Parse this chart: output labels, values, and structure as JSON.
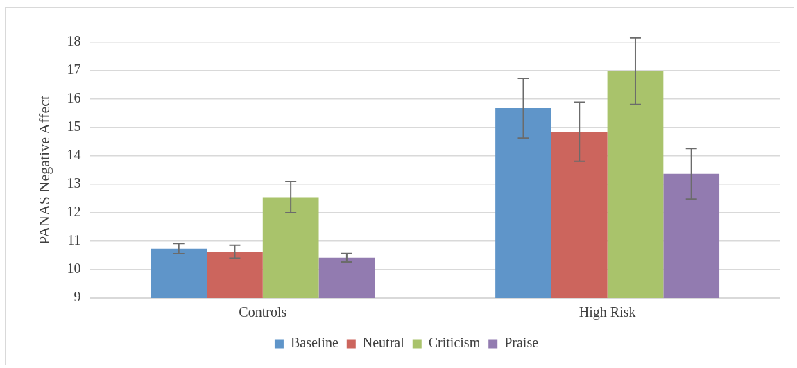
{
  "chart_data": {
    "type": "bar",
    "ylabel": "PANAS Negative Affect",
    "categories": [
      "Controls",
      "High Risk"
    ],
    "series": [
      {
        "name": "Baseline",
        "color": "#5f95c9",
        "values": [
          10.74,
          15.68
        ],
        "errors": [
          0.18,
          1.05
        ]
      },
      {
        "name": "Neutral",
        "color": "#cc655d",
        "values": [
          10.63,
          14.85
        ],
        "errors": [
          0.23,
          1.04
        ]
      },
      {
        "name": "Criticism",
        "color": "#a9c36b",
        "values": [
          12.55,
          16.98
        ],
        "errors": [
          0.55,
          1.17
        ]
      },
      {
        "name": "Praise",
        "color": "#927bb0",
        "values": [
          10.42,
          13.37
        ],
        "errors": [
          0.15,
          0.89
        ]
      }
    ],
    "ylim": [
      9,
      18
    ],
    "yticks": [
      9,
      10,
      11,
      12,
      13,
      14,
      15,
      16,
      17,
      18
    ],
    "grid": "y",
    "legend": "bottom"
  }
}
